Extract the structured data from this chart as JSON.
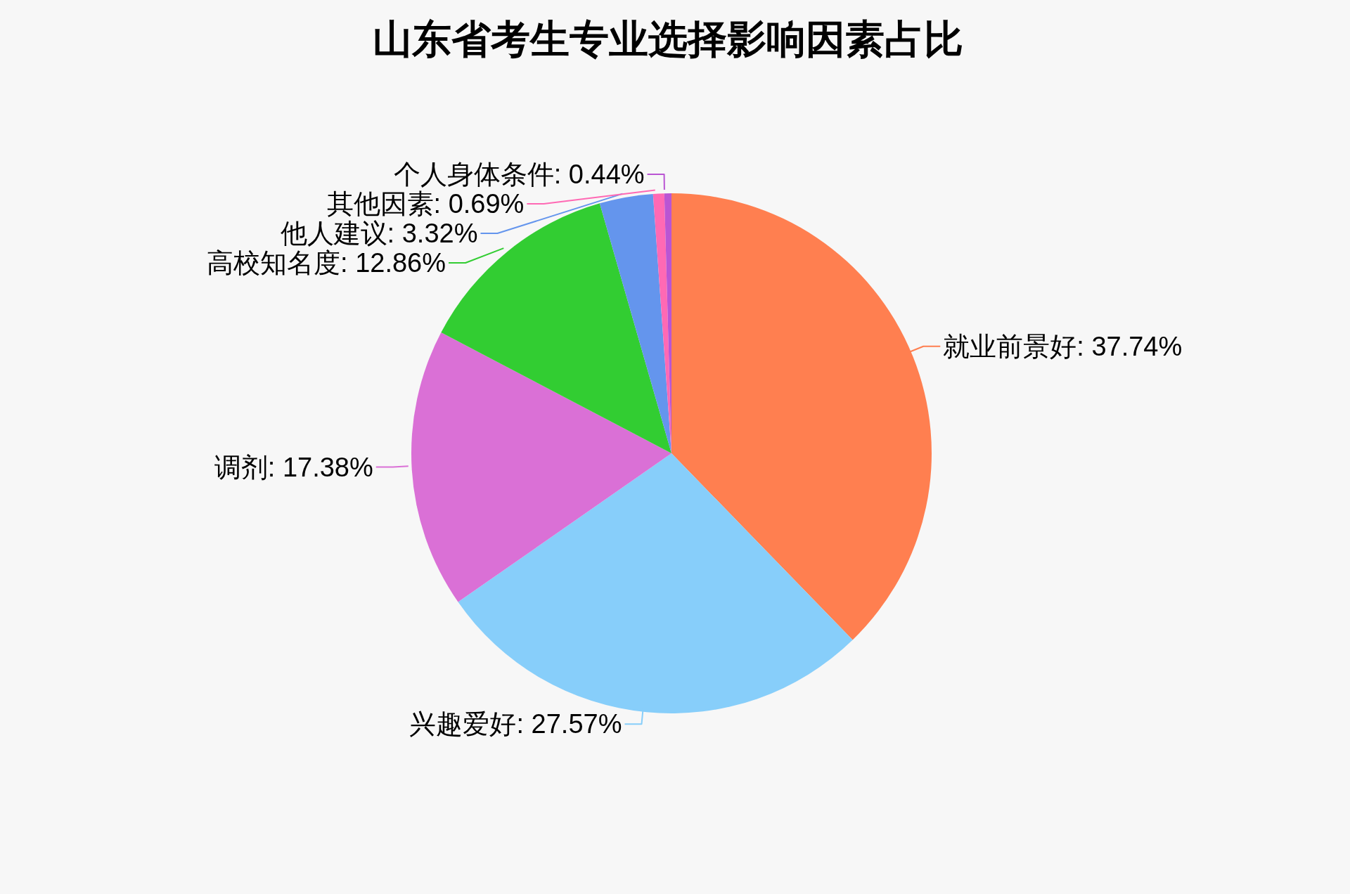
{
  "chart_data": {
    "type": "pie",
    "title": "山东省考生专业选择影响因素占比",
    "categories": [
      "就业前景好",
      "兴趣爱好",
      "调剂",
      "高校知名度",
      "他人建议",
      "其他因素",
      "个人身体条件"
    ],
    "values": [
      37.74,
      27.57,
      17.38,
      12.86,
      3.32,
      0.69,
      0.44
    ],
    "colors": [
      "#ff7f50",
      "#87cefa",
      "#da70d6",
      "#32cd32",
      "#6495ed",
      "#ff69b4",
      "#ba55d3"
    ],
    "value_labels": [
      "37.74%",
      "27.57%",
      "17.38%",
      "12.86%",
      "3.32%",
      "0.69%",
      "0.44%"
    ]
  }
}
